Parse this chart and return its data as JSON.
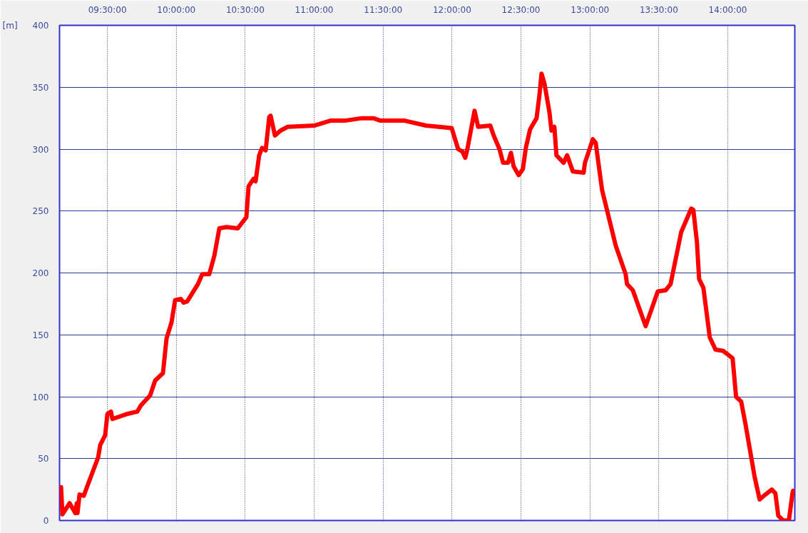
{
  "chart_data": {
    "type": "line",
    "ylabel": "[m]",
    "x": [
      9.164,
      9.174,
      9.226,
      9.252,
      9.267,
      9.278,
      9.283,
      9.298,
      9.329,
      9.355,
      9.433,
      9.448,
      9.484,
      9.5,
      9.526,
      9.536,
      9.64,
      9.717,
      9.743,
      9.81,
      9.846,
      9.903,
      9.929,
      9.965,
      9.991,
      10.033,
      10.053,
      10.079,
      10.157,
      10.188,
      10.239,
      10.276,
      10.312,
      10.363,
      10.446,
      10.508,
      10.524,
      10.56,
      10.575,
      10.601,
      10.622,
      10.648,
      10.674,
      10.684,
      10.715,
      10.756,
      10.808,
      10.999,
      11.118,
      11.222,
      11.346,
      11.429,
      11.48,
      11.656,
      11.811,
      11.997,
      12.044,
      12.075,
      12.096,
      12.111,
      12.163,
      12.189,
      12.277,
      12.302,
      12.344,
      12.37,
      12.406,
      12.427,
      12.447,
      12.483,
      12.514,
      12.535,
      12.566,
      12.613,
      12.633,
      12.649,
      12.67,
      12.706,
      12.721,
      12.742,
      12.757,
      12.809,
      12.835,
      12.876,
      12.954,
      12.964,
      13.021,
      13.042,
      13.088,
      13.187,
      13.259,
      13.269,
      13.311,
      13.404,
      13.492,
      13.549,
      13.585,
      13.662,
      13.735,
      13.75,
      13.776,
      13.792,
      13.823,
      13.869,
      13.911,
      13.967,
      14.035,
      14.06,
      14.097,
      14.128,
      14.195,
      14.231,
      14.273,
      14.319,
      14.345,
      14.366,
      14.402,
      14.443,
      14.469,
      14.474
    ],
    "series": [
      {
        "color": "#ff0000",
        "values": [
          27,
          5,
          14,
          9,
          6,
          14,
          6,
          21,
          20,
          28,
          51,
          61,
          69,
          86,
          88,
          82,
          86,
          88,
          93,
          101,
          113,
          119,
          147,
          160,
          178,
          179,
          176,
          177,
          191,
          199,
          199,
          214,
          236,
          237,
          236,
          245,
          270,
          276,
          274,
          295,
          301,
          299,
          326,
          327,
          311,
          315,
          318,
          319,
          323,
          323,
          325,
          325,
          323,
          323,
          319,
          317,
          300,
          298,
          293,
          300,
          331,
          318,
          319,
          311,
          300,
          289,
          289,
          297,
          286,
          279,
          284,
          301,
          316,
          325,
          343,
          361,
          353,
          330,
          315,
          318,
          295,
          289,
          295,
          282,
          281,
          289,
          308,
          305,
          267,
          222,
          199,
          191,
          186,
          157,
          185,
          186,
          191,
          233,
          252,
          251,
          225,
          195,
          188,
          148,
          138,
          137,
          131,
          100,
          96,
          78,
          35,
          17,
          21,
          25,
          22,
          4,
          0,
          0,
          22,
          24
        ]
      }
    ],
    "xlim": [
      9.153,
      14.486
    ],
    "xticks": [
      {
        "value": 9.5,
        "label": "09:30:00"
      },
      {
        "value": 10,
        "label": "10:00:00"
      },
      {
        "value": 10.5,
        "label": "10:30:00"
      },
      {
        "value": 11,
        "label": "11:00:00"
      },
      {
        "value": 11.5,
        "label": "11:30:00"
      },
      {
        "value": 12,
        "label": "12:00:00"
      },
      {
        "value": 12.5,
        "label": "12:30:00"
      },
      {
        "value": 13,
        "label": "13:00:00"
      },
      {
        "value": 13.5,
        "label": "13:30:00"
      },
      {
        "value": 14,
        "label": "14:00:00"
      }
    ],
    "ylim": [
      0,
      400
    ],
    "yticks": [
      0,
      50,
      100,
      150,
      200,
      250,
      300,
      350,
      400
    ],
    "grid": true,
    "line_style": "solid"
  }
}
